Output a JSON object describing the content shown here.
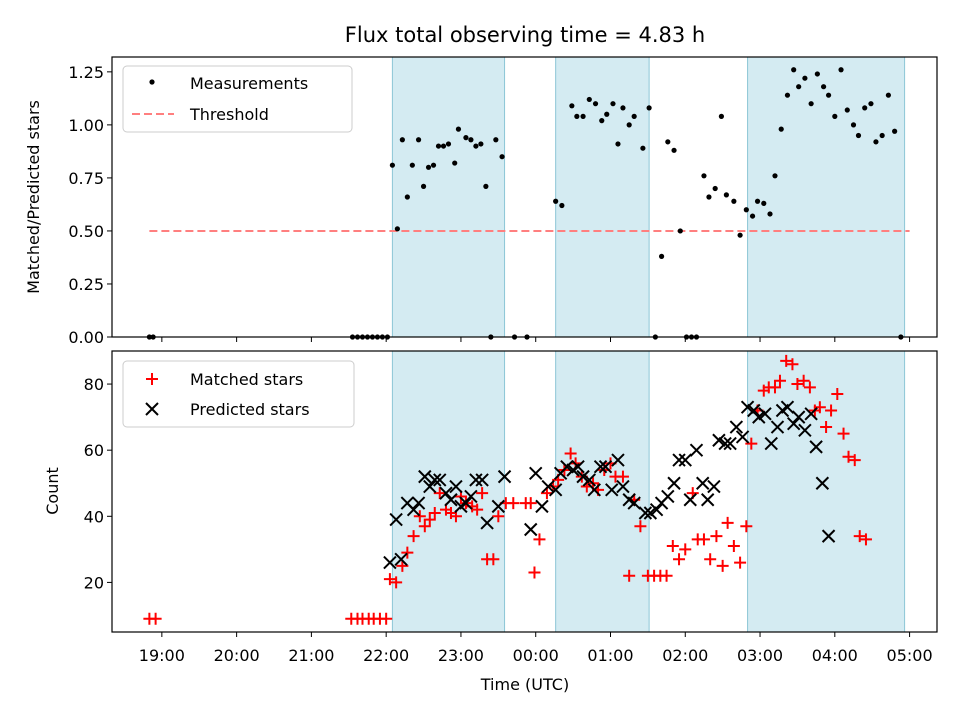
{
  "chart_data": [
    {
      "type": "scatter",
      "title": "Flux total observing time = 4.83 h",
      "xlabel": "",
      "ylabel": "Matched/Predicted stars",
      "ylim": [
        0,
        1.32
      ],
      "yticks": [
        "0.00",
        "0.25",
        "0.50",
        "0.75",
        "1.00",
        "1.25"
      ],
      "legend": "top-left",
      "threshold": {
        "name": "Threshold",
        "value": 0.5,
        "x_range": [
          "18:50",
          "05:00"
        ],
        "color": "#ff7f7f"
      },
      "shaded_intervals": [
        [
          "22:05",
          "23:35"
        ],
        [
          "00:16",
          "01:31"
        ],
        [
          "02:50",
          "04:56"
        ]
      ],
      "series": [
        {
          "name": "Measurements",
          "color": "#000000",
          "points": [
            [
              "18:50",
              0
            ],
            [
              "18:53",
              0
            ],
            [
              "21:33",
              0
            ],
            [
              "21:37",
              0
            ],
            [
              "21:41",
              0
            ],
            [
              "21:45",
              0
            ],
            [
              "21:49",
              0
            ],
            [
              "21:53",
              0
            ],
            [
              "21:57",
              0
            ],
            [
              "22:01",
              0
            ],
            [
              "22:05",
              0.81
            ],
            [
              "22:09",
              0.51
            ],
            [
              "22:13",
              0.93
            ],
            [
              "22:17",
              0.66
            ],
            [
              "22:21",
              0.81
            ],
            [
              "22:26",
              0.93
            ],
            [
              "22:30",
              0.71
            ],
            [
              "22:34",
              0.8
            ],
            [
              "22:38",
              0.81
            ],
            [
              "22:42",
              0.9
            ],
            [
              "22:46",
              0.9
            ],
            [
              "22:50",
              0.91
            ],
            [
              "22:55",
              0.82
            ],
            [
              "22:58",
              0.98
            ],
            [
              "23:04",
              0.94
            ],
            [
              "23:08",
              0.93
            ],
            [
              "23:12",
              0.9
            ],
            [
              "23:16",
              0.91
            ],
            [
              "23:20",
              0.71
            ],
            [
              "23:24",
              0
            ],
            [
              "23:28",
              0.93
            ],
            [
              "23:33",
              0.85
            ],
            [
              "23:43",
              0
            ],
            [
              "23:53",
              0
            ],
            [
              "00:16",
              0.64
            ],
            [
              "00:21",
              0.62
            ],
            [
              "00:29",
              1.09
            ],
            [
              "00:33",
              1.04
            ],
            [
              "00:38",
              1.04
            ],
            [
              "00:43",
              1.12
            ],
            [
              "00:48",
              1.1
            ],
            [
              "00:53",
              1.02
            ],
            [
              "00:57",
              1.05
            ],
            [
              "01:02",
              1.1
            ],
            [
              "01:06",
              0.91
            ],
            [
              "01:10",
              1.08
            ],
            [
              "01:15",
              1.0
            ],
            [
              "01:19",
              1.04
            ],
            [
              "01:26",
              0.89
            ],
            [
              "01:31",
              1.08
            ],
            [
              "01:36",
              0
            ],
            [
              "01:41",
              0.38
            ],
            [
              "01:46",
              0.92
            ],
            [
              "01:51",
              0.88
            ],
            [
              "01:56",
              0.5
            ],
            [
              "02:01",
              0
            ],
            [
              "02:05",
              0
            ],
            [
              "02:09",
              0
            ],
            [
              "02:15",
              0.76
            ],
            [
              "02:19",
              0.66
            ],
            [
              "02:24",
              0.7
            ],
            [
              "02:29",
              1.04
            ],
            [
              "02:33",
              0.67
            ],
            [
              "02:39",
              0.64
            ],
            [
              "02:44",
              0.48
            ],
            [
              "02:49",
              0.6
            ],
            [
              "02:54",
              0.57
            ],
            [
              "02:58",
              0.64
            ],
            [
              "03:03",
              0.63
            ],
            [
              "03:08",
              0.58
            ],
            [
              "03:12",
              0.76
            ],
            [
              "03:17",
              0.98
            ],
            [
              "03:22",
              1.14
            ],
            [
              "03:27",
              1.26
            ],
            [
              "03:31",
              1.18
            ],
            [
              "03:36",
              1.22
            ],
            [
              "03:41",
              1.1
            ],
            [
              "03:46",
              1.24
            ],
            [
              "03:51",
              1.18
            ],
            [
              "03:55",
              1.14
            ],
            [
              "04:00",
              1.04
            ],
            [
              "04:05",
              1.26
            ],
            [
              "04:10",
              1.07
            ],
            [
              "04:15",
              1.0
            ],
            [
              "04:19",
              0.95
            ],
            [
              "04:24",
              1.08
            ],
            [
              "04:29",
              1.1
            ],
            [
              "04:33",
              0.92
            ],
            [
              "04:38",
              0.95
            ],
            [
              "04:43",
              1.14
            ],
            [
              "04:48",
              0.97
            ],
            [
              "04:53",
              0
            ]
          ]
        }
      ]
    },
    {
      "type": "scatter",
      "title": "",
      "xlabel": "Time (UTC)",
      "ylabel": "Count",
      "ylim": [
        5,
        90
      ],
      "yticks": [
        "20",
        "40",
        "60",
        "80"
      ],
      "xticks": [
        "19:00",
        "20:00",
        "21:00",
        "22:00",
        "23:00",
        "00:00",
        "01:00",
        "02:00",
        "03:00",
        "04:00",
        "05:00"
      ],
      "legend": "top-left",
      "series": [
        {
          "name": "Matched stars",
          "marker": "plus",
          "color": "#ff0000",
          "points": [
            [
              "18:50",
              9
            ],
            [
              "18:55",
              9
            ],
            [
              "21:32",
              9
            ],
            [
              "21:37",
              9
            ],
            [
              "21:41",
              9
            ],
            [
              "21:46",
              9
            ],
            [
              "21:50",
              9
            ],
            [
              "21:55",
              9
            ],
            [
              "22:00",
              9
            ],
            [
              "22:03",
              21
            ],
            [
              "22:08",
              20
            ],
            [
              "22:13",
              25
            ],
            [
              "22:17",
              29
            ],
            [
              "22:22",
              34
            ],
            [
              "22:27",
              40
            ],
            [
              "22:31",
              37
            ],
            [
              "22:35",
              39
            ],
            [
              "22:39",
              41
            ],
            [
              "22:43",
              47
            ],
            [
              "22:48",
              42
            ],
            [
              "22:52",
              41
            ],
            [
              "22:56",
              40
            ],
            [
              "23:00",
              46
            ],
            [
              "23:04",
              44
            ],
            [
              "23:09",
              43
            ],
            [
              "23:13",
              42
            ],
            [
              "23:17",
              47
            ],
            [
              "23:21",
              27
            ],
            [
              "23:26",
              27
            ],
            [
              "23:30",
              40
            ],
            [
              "23:36",
              44
            ],
            [
              "23:42",
              44
            ],
            [
              "23:52",
              44
            ],
            [
              "23:56",
              44
            ],
            [
              "23:59",
              23
            ],
            [
              "00:03",
              33
            ],
            [
              "00:09",
              47
            ],
            [
              "00:14",
              49
            ],
            [
              "00:18",
              51
            ],
            [
              "00:23",
              54
            ],
            [
              "00:28",
              59
            ],
            [
              "00:32",
              56
            ],
            [
              "00:37",
              52
            ],
            [
              "00:41",
              49
            ],
            [
              "00:46",
              50
            ],
            [
              "00:50",
              48
            ],
            [
              "00:55",
              54
            ],
            [
              "01:00",
              56
            ],
            [
              "01:04",
              52
            ],
            [
              "01:10",
              52
            ],
            [
              "01:15",
              22
            ],
            [
              "01:19",
              45
            ],
            [
              "01:24",
              37
            ],
            [
              "01:30",
              22
            ],
            [
              "01:35",
              22
            ],
            [
              "01:40",
              22
            ],
            [
              "01:45",
              22
            ],
            [
              "01:50",
              31
            ],
            [
              "01:55",
              27
            ],
            [
              "02:00",
              30
            ],
            [
              "02:06",
              47
            ],
            [
              "02:10",
              33
            ],
            [
              "02:15",
              33
            ],
            [
              "02:20",
              27
            ],
            [
              "02:25",
              34
            ],
            [
              "02:30",
              25
            ],
            [
              "02:34",
              38
            ],
            [
              "02:39",
              31
            ],
            [
              "02:44",
              26
            ],
            [
              "02:49",
              37
            ],
            [
              "02:53",
              62
            ],
            [
              "02:58",
              72
            ],
            [
              "03:03",
              78
            ],
            [
              "03:07",
              79
            ],
            [
              "03:12",
              79
            ],
            [
              "03:16",
              81
            ],
            [
              "03:21",
              87
            ],
            [
              "03:26",
              86
            ],
            [
              "03:30",
              80
            ],
            [
              "03:35",
              81
            ],
            [
              "03:40",
              79
            ],
            [
              "03:44",
              72
            ],
            [
              "03:48",
              73
            ],
            [
              "03:53",
              67
            ],
            [
              "03:57",
              72
            ],
            [
              "04:02",
              77
            ],
            [
              "04:07",
              65
            ],
            [
              "04:11",
              58
            ],
            [
              "04:16",
              57
            ],
            [
              "04:20",
              34
            ],
            [
              "04:25",
              33
            ]
          ]
        },
        {
          "name": "Predicted stars",
          "marker": "x",
          "color": "#000000",
          "points": [
            [
              "22:03",
              26
            ],
            [
              "22:08",
              39
            ],
            [
              "22:12",
              27
            ],
            [
              "22:17",
              44
            ],
            [
              "22:22",
              42
            ],
            [
              "22:26",
              44
            ],
            [
              "22:31",
              52
            ],
            [
              "22:35",
              49
            ],
            [
              "22:39",
              51
            ],
            [
              "22:43",
              51
            ],
            [
              "22:48",
              47
            ],
            [
              "22:52",
              45
            ],
            [
              "22:56",
              49
            ],
            [
              "23:00",
              43
            ],
            [
              "23:04",
              44
            ],
            [
              "23:08",
              46
            ],
            [
              "23:12",
              51
            ],
            [
              "23:17",
              51
            ],
            [
              "23:21",
              38
            ],
            [
              "23:30",
              43
            ],
            [
              "23:35",
              52
            ],
            [
              "23:56",
              36
            ],
            [
              "00:00",
              53
            ],
            [
              "00:05",
              43
            ],
            [
              "00:10",
              49
            ],
            [
              "00:16",
              48
            ],
            [
              "00:20",
              53
            ],
            [
              "00:25",
              55
            ],
            [
              "00:30",
              54
            ],
            [
              "00:34",
              55
            ],
            [
              "00:38",
              52
            ],
            [
              "00:43",
              51
            ],
            [
              "00:47",
              48
            ],
            [
              "00:52",
              55
            ],
            [
              "00:56",
              55
            ],
            [
              "01:01",
              48
            ],
            [
              "01:06",
              57
            ],
            [
              "01:10",
              49
            ],
            [
              "01:15",
              45
            ],
            [
              "01:19",
              44
            ],
            [
              "01:28",
              41
            ],
            [
              "01:32",
              41
            ],
            [
              "01:37",
              42
            ],
            [
              "01:41",
              44
            ],
            [
              "01:46",
              46
            ],
            [
              "01:51",
              50
            ],
            [
              "01:55",
              57
            ],
            [
              "02:00",
              57
            ],
            [
              "02:04",
              45
            ],
            [
              "02:09",
              60
            ],
            [
              "02:14",
              50
            ],
            [
              "02:18",
              45
            ],
            [
              "02:23",
              49
            ],
            [
              "02:27",
              63
            ],
            [
              "02:32",
              62
            ],
            [
              "02:36",
              62
            ],
            [
              "02:41",
              67
            ],
            [
              "02:46",
              64
            ],
            [
              "02:50",
              73
            ],
            [
              "02:55",
              72
            ],
            [
              "02:59",
              70
            ],
            [
              "03:04",
              71
            ],
            [
              "03:09",
              62
            ],
            [
              "03:14",
              67
            ],
            [
              "03:18",
              72
            ],
            [
              "03:22",
              73
            ],
            [
              "03:27",
              68
            ],
            [
              "03:31",
              70
            ],
            [
              "03:36",
              66
            ],
            [
              "03:41",
              71
            ],
            [
              "03:45",
              61
            ],
            [
              "03:50",
              50
            ],
            [
              "03:55",
              34
            ]
          ]
        }
      ]
    }
  ]
}
